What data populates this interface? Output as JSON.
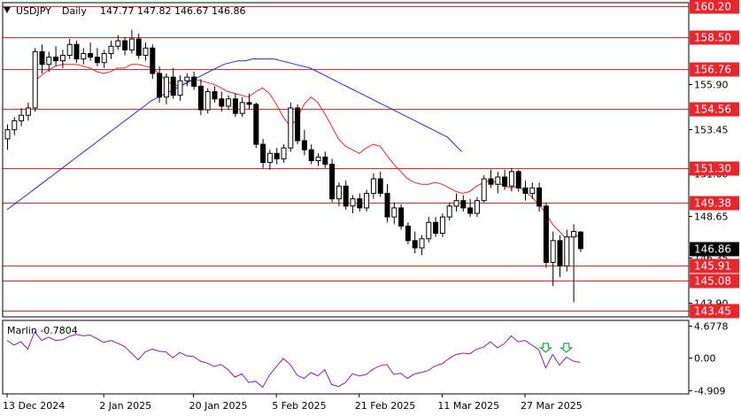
{
  "chart_data": {
    "type": "candlestick",
    "symbol": "USDJPY",
    "timeframe": "Daily",
    "header_ohlc": "147.77 147.82 146.67 146.86",
    "current_price": 146.86,
    "ylim": [
      143.1,
      160.4
    ],
    "price_ticks": [
      155.9,
      153.45,
      151.0,
      148.65,
      146.35,
      143.9
    ],
    "price_tick_labels": [
      "155.90",
      "153.45",
      "151.00",
      "148.65",
      "146.35",
      "143.90"
    ],
    "levels": [
      {
        "value": 160.2,
        "label": "160.20"
      },
      {
        "value": 158.5,
        "label": "158.50"
      },
      {
        "value": 156.76,
        "label": "156.76"
      },
      {
        "value": 154.56,
        "label": "154.56"
      },
      {
        "value": 151.3,
        "label": "151.30"
      },
      {
        "value": 149.38,
        "label": "149.38"
      },
      {
        "value": 145.91,
        "label": "145.91"
      },
      {
        "value": 145.08,
        "label": "145.08"
      },
      {
        "value": 143.45,
        "label": "143.45"
      }
    ],
    "x_labels": [
      "13 Dec 2024",
      "2 Jan 2025",
      "20 Jan 2025",
      "5 Feb 2025",
      "21 Feb 2025",
      "11 Mar 2025",
      "27 Mar 2025"
    ],
    "x_label_index": [
      0,
      14,
      27,
      39,
      51,
      63,
      75
    ],
    "candles": [
      [
        152.9,
        153.7,
        152.3,
        153.4
      ],
      [
        153.4,
        154.1,
        153.1,
        153.9
      ],
      [
        153.9,
        154.6,
        153.6,
        154.2
      ],
      [
        154.2,
        154.9,
        153.9,
        154.6
      ],
      [
        154.6,
        157.9,
        154.4,
        157.7
      ],
      [
        157.7,
        158.1,
        156.5,
        157.0
      ],
      [
        157.0,
        157.7,
        156.6,
        157.4
      ],
      [
        157.4,
        158.0,
        156.9,
        157.2
      ],
      [
        157.2,
        157.8,
        156.8,
        157.5
      ],
      [
        157.5,
        158.4,
        157.3,
        158.1
      ],
      [
        158.1,
        158.3,
        157.1,
        157.3
      ],
      [
        157.3,
        157.9,
        157.0,
        157.6
      ],
      [
        157.6,
        158.2,
        157.2,
        157.4
      ],
      [
        157.4,
        157.9,
        156.9,
        157.1
      ],
      [
        157.1,
        157.8,
        156.8,
        157.6
      ],
      [
        157.6,
        158.3,
        157.3,
        158.0
      ],
      [
        158.0,
        158.6,
        157.8,
        158.3
      ],
      [
        158.3,
        158.5,
        157.5,
        157.8
      ],
      [
        157.8,
        158.9,
        157.6,
        158.4
      ],
      [
        158.4,
        158.7,
        157.3,
        157.5
      ],
      [
        157.5,
        158.2,
        157.2,
        157.9
      ],
      [
        157.9,
        158.1,
        156.2,
        156.5
      ],
      [
        156.5,
        156.9,
        154.9,
        155.2
      ],
      [
        155.2,
        156.5,
        154.8,
        156.3
      ],
      [
        156.3,
        156.8,
        155.1,
        155.3
      ],
      [
        155.3,
        156.4,
        155.0,
        156.1
      ],
      [
        156.1,
        156.5,
        155.8,
        156.3
      ],
      [
        156.3,
        156.6,
        155.6,
        155.8
      ],
      [
        155.8,
        156.2,
        154.2,
        154.5
      ],
      [
        154.5,
        155.7,
        154.3,
        155.5
      ],
      [
        155.5,
        155.8,
        154.9,
        155.1
      ],
      [
        155.1,
        155.5,
        154.4,
        154.7
      ],
      [
        154.7,
        155.3,
        154.5,
        155.1
      ],
      [
        155.1,
        155.4,
        154.1,
        154.3
      ],
      [
        154.3,
        155.2,
        154.1,
        154.9
      ],
      [
        154.9,
        155.4,
        154.5,
        154.8
      ],
      [
        154.8,
        154.9,
        152.4,
        152.6
      ],
      [
        152.6,
        152.9,
        151.3,
        151.6
      ],
      [
        151.6,
        152.3,
        151.2,
        152.1
      ],
      [
        152.1,
        152.4,
        151.5,
        151.8
      ],
      [
        151.8,
        152.6,
        151.6,
        152.4
      ],
      [
        152.4,
        154.9,
        152.2,
        154.6
      ],
      [
        154.6,
        154.8,
        152.6,
        152.8
      ],
      [
        152.8,
        153.4,
        152.0,
        152.3
      ],
      [
        152.3,
        152.6,
        151.5,
        151.7
      ],
      [
        151.7,
        152.1,
        151.4,
        151.9
      ],
      [
        151.9,
        152.2,
        151.3,
        151.5
      ],
      [
        151.5,
        151.8,
        149.4,
        149.6
      ],
      [
        149.6,
        150.5,
        149.2,
        150.3
      ],
      [
        150.3,
        150.6,
        149.0,
        149.2
      ],
      [
        149.2,
        149.8,
        148.8,
        149.6
      ],
      [
        149.6,
        149.9,
        148.9,
        149.1
      ],
      [
        149.1,
        150.1,
        148.9,
        149.9
      ],
      [
        149.9,
        151.0,
        149.6,
        150.7
      ],
      [
        150.7,
        151.1,
        149.7,
        149.9
      ],
      [
        149.9,
        150.4,
        148.3,
        148.6
      ],
      [
        148.6,
        149.4,
        148.2,
        149.1
      ],
      [
        149.1,
        149.3,
        147.9,
        148.1
      ],
      [
        148.1,
        148.3,
        147.1,
        147.3
      ],
      [
        147.3,
        147.8,
        146.6,
        146.9
      ],
      [
        146.9,
        147.6,
        146.5,
        147.4
      ],
      [
        147.4,
        148.6,
        147.2,
        148.3
      ],
      [
        148.3,
        148.6,
        147.5,
        147.7
      ],
      [
        147.7,
        148.8,
        147.5,
        148.6
      ],
      [
        148.6,
        149.4,
        148.4,
        149.2
      ],
      [
        149.2,
        149.9,
        148.9,
        149.5
      ],
      [
        149.5,
        149.8,
        148.9,
        149.1
      ],
      [
        149.1,
        149.6,
        148.6,
        148.8
      ],
      [
        148.8,
        149.7,
        148.6,
        149.5
      ],
      [
        149.5,
        150.9,
        149.4,
        150.7
      ],
      [
        150.7,
        151.2,
        150.2,
        150.4
      ],
      [
        150.4,
        151.1,
        149.9,
        150.8
      ],
      [
        150.8,
        151.2,
        150.1,
        150.3
      ],
      [
        150.3,
        151.3,
        150.0,
        151.1
      ],
      [
        151.1,
        151.2,
        150.0,
        150.2
      ],
      [
        150.2,
        150.6,
        149.5,
        149.9
      ],
      [
        149.9,
        150.5,
        149.6,
        150.2
      ],
      [
        150.2,
        150.5,
        148.9,
        149.2
      ],
      [
        149.2,
        149.4,
        145.8,
        146.1
      ],
      [
        146.1,
        147.8,
        144.8,
        147.3
      ],
      [
        147.3,
        147.6,
        145.3,
        145.9
      ],
      [
        145.9,
        147.9,
        145.6,
        147.5
      ],
      [
        147.5,
        148.2,
        143.9,
        147.8
      ],
      [
        147.77,
        147.82,
        146.67,
        146.86
      ]
    ],
    "series": [
      {
        "values": [
          null,
          null,
          null,
          null,
          156.1,
          156.4,
          156.7,
          156.9,
          157.0,
          157.0,
          157.0,
          156.9,
          156.8,
          156.6,
          156.5,
          156.6,
          156.8,
          156.8,
          157.0,
          157.0,
          156.9,
          156.8,
          156.5,
          156.1,
          155.9,
          155.8,
          156.0,
          156.2,
          156.1,
          156.0,
          155.9,
          155.7,
          155.5,
          155.4,
          155.3,
          155.2,
          155.5,
          155.7,
          155.4,
          154.8,
          154.1,
          153.6,
          154.0,
          154.8,
          155.2,
          154.9,
          154.3,
          153.6,
          152.9,
          152.5,
          152.3,
          152.1,
          152.4,
          152.6,
          152.5,
          152.0,
          151.5,
          151.1,
          150.7,
          150.5,
          150.4,
          150.4,
          150.5,
          150.4,
          150.2,
          150.0,
          149.9,
          150.0,
          150.3,
          150.5,
          150.6,
          150.5,
          150.3,
          150.2,
          150.3,
          150.0,
          149.7,
          149.3,
          148.8,
          148.2,
          147.8,
          147.4,
          147.6,
          147.5
        ]
      },
      {
        "values": [
          149.0,
          149.3,
          149.6,
          149.9,
          150.2,
          150.5,
          150.8,
          151.1,
          151.4,
          151.7,
          152.0,
          152.3,
          152.6,
          152.9,
          153.2,
          153.5,
          153.8,
          154.1,
          154.4,
          154.7,
          155.0,
          155.2,
          155.4,
          155.6,
          155.8,
          156.0,
          156.2,
          156.4,
          156.6,
          156.8,
          157.0,
          157.1,
          157.2,
          157.2,
          157.3,
          157.3,
          157.3,
          157.3,
          157.2,
          157.1,
          157.0,
          156.9,
          156.8,
          156.6,
          156.4,
          156.2,
          156.0,
          155.8,
          155.6,
          155.4,
          155.2,
          155.0,
          154.8,
          154.6,
          154.4,
          154.2,
          154.0,
          153.8,
          153.6,
          153.4,
          153.2,
          153.0,
          152.6,
          152.2
        ]
      }
    ],
    "indicator": {
      "name": "Marlin",
      "label": "Marlin -0.7804",
      "ylim": [
        -5.5,
        5.5
      ],
      "ticks": [
        4.6778,
        0.0,
        -4.909
      ],
      "tick_labels": [
        "4.6778",
        "0.00",
        "-4.909"
      ],
      "values": [
        2.5,
        1.8,
        2.3,
        1.2,
        3.8,
        2.5,
        3.0,
        2.5,
        2.6,
        3.1,
        3.4,
        3.2,
        3.3,
        2.8,
        2.2,
        2.5,
        2.1,
        1.6,
        0.6,
        -0.4,
        0.8,
        1.2,
        0.9,
        0.8,
        -0.1,
        0.7,
        0.2,
        0.1,
        -0.6,
        -0.9,
        -1.4,
        -1.1,
        -1.9,
        -3.0,
        -2.5,
        -3.8,
        -3.6,
        -4.5,
        -2.7,
        -1.4,
        -0.2,
        -1.1,
        -2.7,
        -3.2,
        -2.3,
        -2.8,
        -1.9,
        -4.1,
        -4.4,
        -3.8,
        -2.5,
        -2.8,
        -2.6,
        -1.8,
        -1.3,
        -1.1,
        -2.6,
        -2.4,
        -3.2,
        -2.5,
        -2.3,
        -2.0,
        -1.3,
        -1.0,
        -0.2,
        0.4,
        0.6,
        0.5,
        1.2,
        1.5,
        2.3,
        1.4,
        2.0,
        3.2,
        2.3,
        2.5,
        1.8,
        1.1,
        -1.6,
        0.4,
        -1.2,
        0.0,
        -0.6,
        -0.78
      ],
      "signals": [
        78,
        81
      ]
    }
  }
}
